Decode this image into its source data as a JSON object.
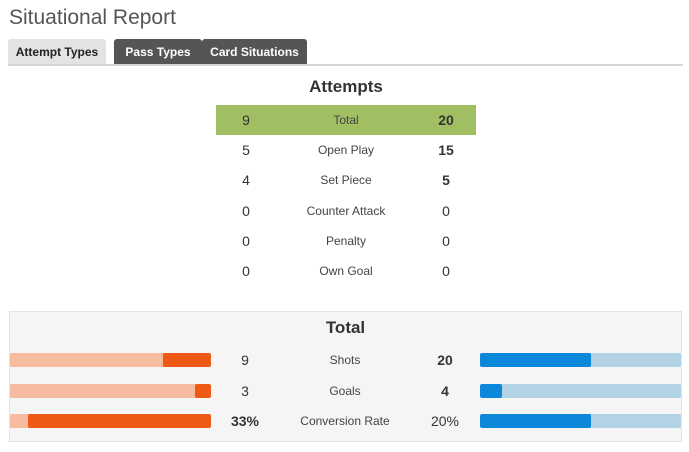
{
  "page": {
    "title": "Situational Report"
  },
  "tabs": [
    {
      "label": "Attempt Types",
      "active": true
    },
    {
      "label": "Pass Types",
      "active": false
    },
    {
      "label": "Card Situations",
      "active": false
    }
  ],
  "attempts": {
    "heading": "Attempts",
    "highlight_color": "#a0bf63",
    "rows": [
      {
        "label": "Total",
        "left": "9",
        "right": "20"
      },
      {
        "label": "Open Play",
        "left": "5",
        "right": "15"
      },
      {
        "label": "Set Piece",
        "left": "4",
        "right": "5"
      },
      {
        "label": "Counter Attack",
        "left": "0",
        "right": "0"
      },
      {
        "label": "Penalty",
        "left": "0",
        "right": "0"
      },
      {
        "label": "Own Goal",
        "left": "0",
        "right": "0"
      }
    ]
  },
  "totals": {
    "heading": "Total",
    "left_colors": {
      "track": "#f7bb9f",
      "fill": "#ed5a16"
    },
    "right_colors": {
      "track": "#b2d3e6",
      "fill": "#0d87d9"
    },
    "rows": [
      {
        "label": "Shots",
        "left": "9",
        "right": "20",
        "left_ratio": 0.24,
        "right_ratio": 0.55
      },
      {
        "label": "Goals",
        "left": "3",
        "right": "4",
        "left_ratio": 0.08,
        "right_ratio": 0.11
      },
      {
        "label": "Conversion Rate",
        "left": "33%",
        "right": "20%",
        "left_ratio": 0.91,
        "right_ratio": 0.55
      }
    ]
  }
}
